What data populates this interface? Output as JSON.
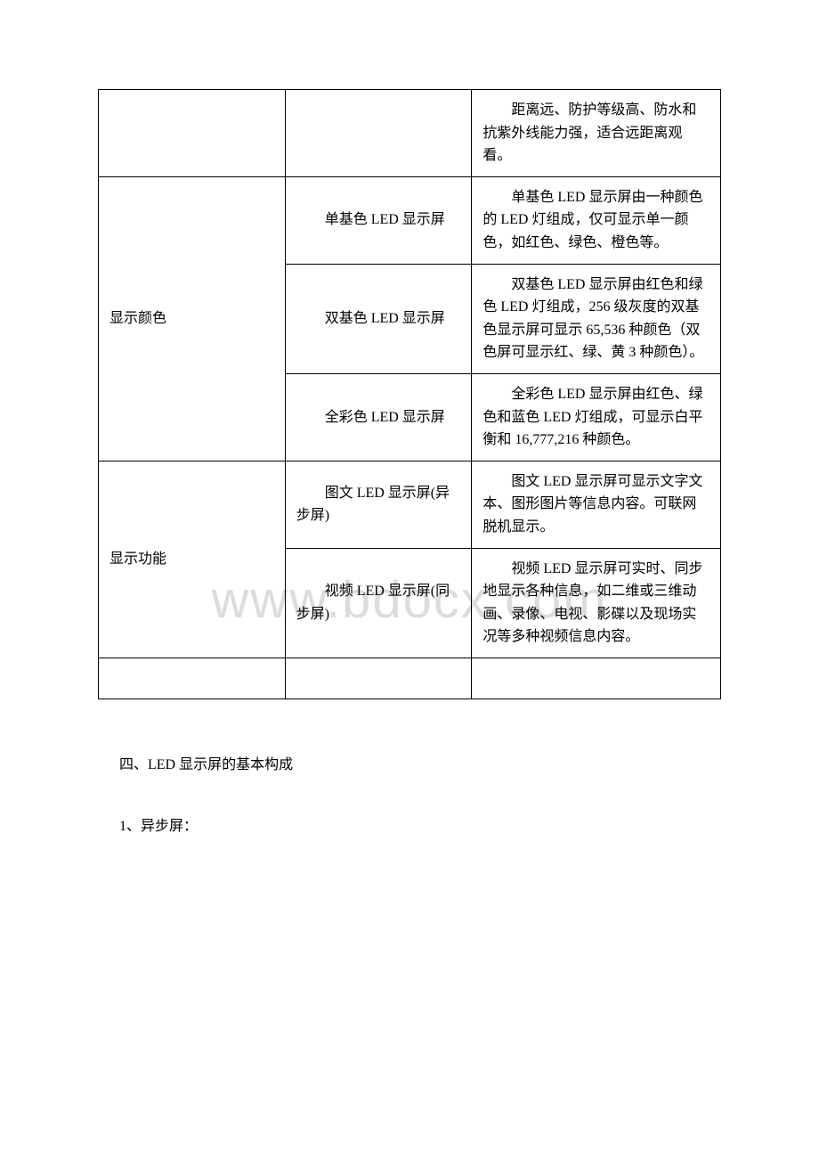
{
  "watermark": "www.bdocx.com",
  "table": {
    "rows": [
      {
        "category": "",
        "type": "",
        "desc": "距离远、防护等级高、防水和抗紫外线能力强，适合远距离观看。",
        "categoryRowspan": 0,
        "showCategory": false,
        "showType": false
      },
      {
        "category": "显示颜色",
        "type": "单基色 LED 显示屏",
        "desc": "单基色 LED 显示屏由一种颜色的 LED 灯组成，仅可显示单一颜色，如红色、绿色、橙色等。",
        "categoryRowspan": 3,
        "showCategory": true,
        "showType": true
      },
      {
        "category": "",
        "type": "双基色 LED 显示屏",
        "desc": "双基色 LED 显示屏由红色和绿色 LED 灯组成，256 级灰度的双基色显示屏可显示 65,536 种颜色（双色屏可显示红、绿、黄 3 种颜色）。",
        "categoryRowspan": 0,
        "showCategory": false,
        "showType": true
      },
      {
        "category": "",
        "type": "全彩色 LED 显示屏",
        "desc": "全彩色 LED 显示屏由红色、绿色和蓝色 LED 灯组成，可显示白平衡和 16,777,216 种颜色。",
        "categoryRowspan": 0,
        "showCategory": false,
        "showType": true
      },
      {
        "category": "显示功能",
        "type": "图文 LED 显示屏(异步屏)",
        "desc": "图文 LED 显示屏可显示文字文本、图形图片等信息内容。可联网脱机显示。",
        "categoryRowspan": 2,
        "showCategory": true,
        "showType": true
      },
      {
        "category": "",
        "type": "视频 LED 显示屏(同步屏)",
        "desc": "视频 LED 显示屏可实时、同步地显示各种信息，如二维或三维动画、录像、电视、影碟以及现场实况等多种视频信息内容。",
        "categoryRowspan": 0,
        "showCategory": false,
        "showType": true
      },
      {
        "category": "",
        "type": "",
        "desc": "",
        "categoryRowspan": 0,
        "showCategory": true,
        "showType": true,
        "emptyRow": true
      }
    ]
  },
  "headings": {
    "section4": "四、LED 显示屏的基本构成",
    "item1": "1、异步屏："
  }
}
